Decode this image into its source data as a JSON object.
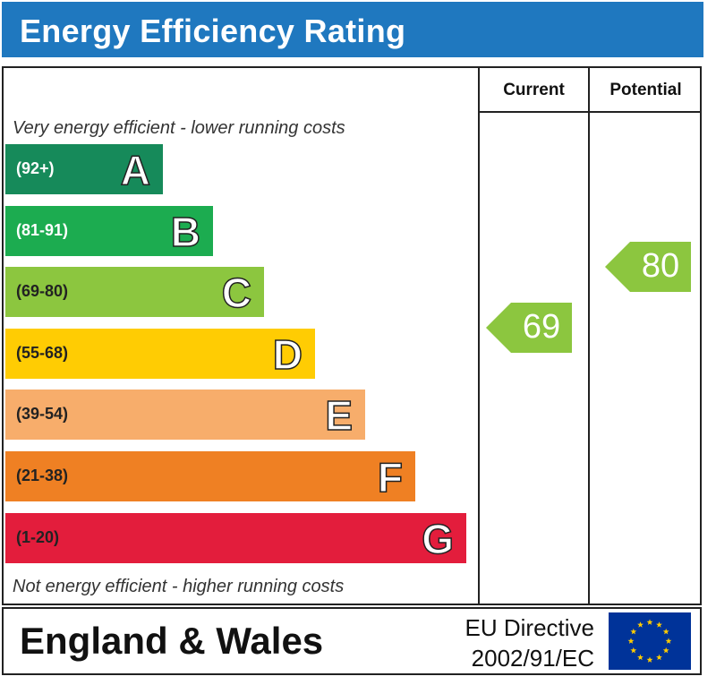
{
  "header": {
    "title": "Energy Efficiency Rating"
  },
  "columns": {
    "current": "Current",
    "potential": "Potential"
  },
  "notes": {
    "top": "Very energy efficient - lower running costs",
    "bottom": "Not energy efficient - higher running costs"
  },
  "footer": {
    "region": "England & Wales",
    "directive_line1": "EU Directive",
    "directive_line2": "2002/91/EC"
  },
  "chart_data": {
    "type": "bar",
    "title": "Energy Efficiency Rating",
    "bands": [
      {
        "letter": "A",
        "range": "(92+)",
        "min": 92,
        "max": 100,
        "color": "#168a5a",
        "text_color": "#ffffff"
      },
      {
        "letter": "B",
        "range": "(81-91)",
        "min": 81,
        "max": 91,
        "color": "#1cac50",
        "text_color": "#ffffff"
      },
      {
        "letter": "C",
        "range": "(69-80)",
        "min": 69,
        "max": 80,
        "color": "#8cc63f",
        "text_color": "#222222"
      },
      {
        "letter": "D",
        "range": "(55-68)",
        "min": 55,
        "max": 68,
        "color": "#ffcc03",
        "text_color": "#222222"
      },
      {
        "letter": "E",
        "range": "(39-54)",
        "min": 39,
        "max": 54,
        "color": "#f7ad6b",
        "text_color": "#222222"
      },
      {
        "letter": "F",
        "range": "(21-38)",
        "min": 21,
        "max": 38,
        "color": "#ef8023",
        "text_color": "#222222"
      },
      {
        "letter": "G",
        "range": "(1-20)",
        "min": 1,
        "max": 20,
        "color": "#e31d3c",
        "text_color": "#222222"
      }
    ],
    "ratings": [
      {
        "name": "Current",
        "value": 69,
        "band": "C",
        "color": "#8cc63f"
      },
      {
        "name": "Potential",
        "value": 80,
        "band": "C",
        "color": "#8cc63f"
      }
    ]
  }
}
